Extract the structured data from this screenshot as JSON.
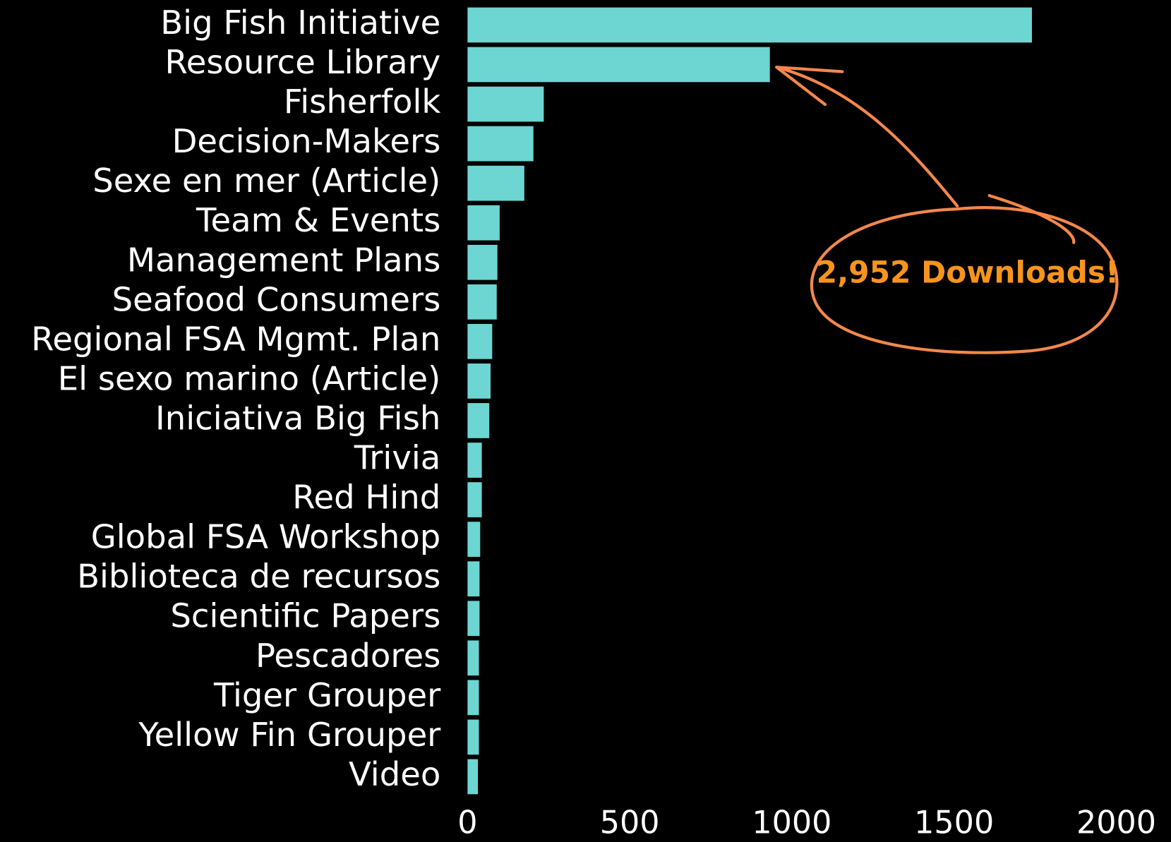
{
  "chart_data": {
    "type": "bar",
    "orientation": "horizontal",
    "categories": [
      "Big Fish Initiative",
      "Resource Library",
      "Fisherfolk",
      "Decision-Makers",
      "Sexe en mer (Article)",
      "Team & Events",
      "Management Plans",
      "Seafood Consumers",
      "Regional FSA Mgmt. Plan",
      "El sexo marino (Article)",
      "Iniciativa Big Fish",
      "Trivia",
      "Red Hind",
      "Global FSA Workshop",
      "Biblioteca de recursos",
      "Scientific Papers",
      "Pescadores",
      "Tiger Grouper",
      "Yellow Fin Grouper",
      "Video"
    ],
    "values": [
      1740,
      932,
      235,
      203,
      175,
      99,
      92,
      90,
      76,
      71,
      67,
      44,
      44,
      39,
      37,
      37,
      35,
      35,
      35,
      32
    ],
    "color": "#6dd5d2",
    "xlim": [
      0,
      2000
    ],
    "xticks": [
      0,
      500,
      1000,
      1500,
      2000
    ],
    "grid": false,
    "annotation": "2,952 Downloads!"
  }
}
